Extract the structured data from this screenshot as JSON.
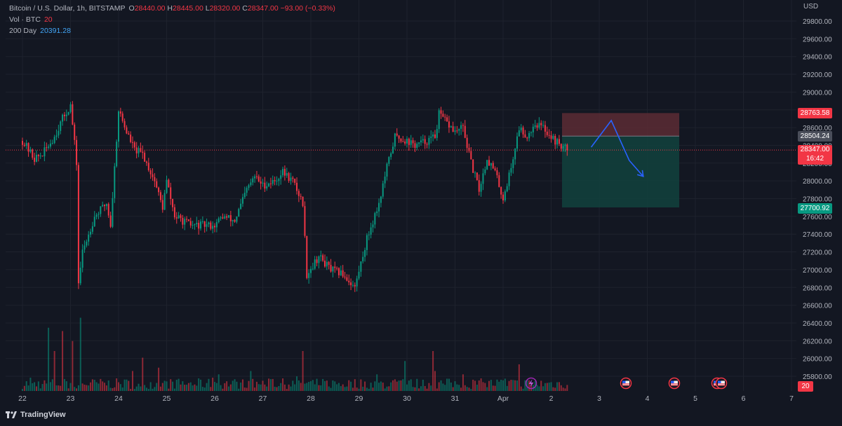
{
  "legend": {
    "symbol": "Bitcoin / U.S. Dollar, 1h, BITSTAMP",
    "o_label": "O",
    "o_value": "28440.00",
    "h_label": "H",
    "h_value": "28445.00",
    "l_label": "L",
    "l_value": "28320.00",
    "c_label": "C",
    "c_value": "28347.00",
    "change": "−93.00 (−0.33%)",
    "vol_label": "Vol · BTC",
    "vol_value": "20",
    "ma_label": "200 Day",
    "ma_value": "20391.28"
  },
  "price_axis": {
    "currency": "USD",
    "ticks": [
      "29800.00",
      "29600.00",
      "29400.00",
      "29200.00",
      "29000.00",
      "28800.00",
      "28600.00",
      "28400.00",
      "28200.00",
      "28000.00",
      "27800.00",
      "27600.00",
      "27400.00",
      "27200.00",
      "27000.00",
      "26800.00",
      "26600.00",
      "26400.00",
      "26200.00",
      "26000.00",
      "25800.00"
    ]
  },
  "tags": {
    "stop": "28763.58",
    "entry": "28504.24",
    "last_price": "28347.00",
    "countdown": "16:42",
    "target": "27700.92",
    "volume": "20"
  },
  "time_axis": {
    "ticks": [
      "22",
      "23",
      "24",
      "25",
      "26",
      "27",
      "28",
      "29",
      "30",
      "31",
      "Apr",
      "2",
      "3",
      "4",
      "5",
      "6",
      "7"
    ]
  },
  "branding": {
    "name": "TradingView"
  },
  "colors": {
    "up": "#089981",
    "down": "#f23645",
    "background": "#131722",
    "arrow": "#2962ff",
    "stop_zone": "#5c2b34",
    "target_zone": "#123f3c"
  },
  "chart_data": {
    "type": "candlestick",
    "interval": "1h",
    "symbol": "Bitcoin / U.S. Dollar",
    "exchange": "BITSTAMP",
    "ylim": [
      25700,
      29900
    ],
    "x_range": [
      "22",
      "7"
    ],
    "last_close": 28347,
    "anchors_price_by_hour": [
      [
        0,
        28450
      ],
      [
        6,
        28250
      ],
      [
        10,
        28300
      ],
      [
        16,
        28500
      ],
      [
        20,
        28700
      ],
      [
        24,
        28850
      ],
      [
        27,
        28200
      ],
      [
        28,
        26850
      ],
      [
        30,
        27200
      ],
      [
        36,
        27600
      ],
      [
        42,
        27750
      ],
      [
        44,
        27500
      ],
      [
        48,
        28800
      ],
      [
        52,
        28550
      ],
      [
        56,
        28350
      ],
      [
        60,
        28300
      ],
      [
        66,
        28000
      ],
      [
        70,
        27700
      ],
      [
        72,
        28000
      ],
      [
        76,
        27600
      ],
      [
        80,
        27550
      ],
      [
        84,
        27500
      ],
      [
        90,
        27500
      ],
      [
        96,
        27500
      ],
      [
        100,
        27600
      ],
      [
        106,
        27550
      ],
      [
        112,
        27900
      ],
      [
        116,
        28050
      ],
      [
        120,
        27950
      ],
      [
        126,
        28000
      ],
      [
        130,
        28100
      ],
      [
        135,
        28000
      ],
      [
        140,
        27750
      ],
      [
        142,
        26950
      ],
      [
        148,
        27150
      ],
      [
        154,
        27000
      ],
      [
        160,
        26950
      ],
      [
        166,
        26800
      ],
      [
        172,
        27350
      ],
      [
        178,
        27750
      ],
      [
        182,
        28150
      ],
      [
        186,
        28500
      ],
      [
        192,
        28450
      ],
      [
        196,
        28400
      ],
      [
        202,
        28450
      ],
      [
        206,
        28500
      ],
      [
        208,
        28750
      ],
      [
        212,
        28650
      ],
      [
        216,
        28550
      ],
      [
        220,
        28600
      ],
      [
        224,
        28200
      ],
      [
        228,
        27900
      ],
      [
        232,
        28250
      ],
      [
        236,
        28100
      ],
      [
        240,
        27800
      ],
      [
        244,
        28150
      ],
      [
        248,
        28600
      ],
      [
        252,
        28500
      ],
      [
        256,
        28650
      ],
      [
        260,
        28600
      ],
      [
        266,
        28450
      ],
      [
        270,
        28380
      ],
      [
        272,
        28347
      ]
    ],
    "volume_spike_hours": [
      [
        4,
        20
      ],
      [
        13,
        95
      ],
      [
        16,
        60
      ],
      [
        20,
        90
      ],
      [
        25,
        75
      ],
      [
        29,
        110
      ],
      [
        55,
        30
      ],
      [
        60,
        50
      ],
      [
        68,
        35
      ],
      [
        95,
        20
      ],
      [
        98,
        25
      ],
      [
        113,
        15
      ],
      [
        114,
        30
      ],
      [
        125,
        18
      ],
      [
        137,
        22
      ],
      [
        140,
        60
      ],
      [
        150,
        18
      ],
      [
        177,
        25
      ],
      [
        191,
        45
      ],
      [
        205,
        60
      ],
      [
        206,
        30
      ],
      [
        220,
        25
      ],
      [
        231,
        12
      ],
      [
        243,
        15
      ],
      [
        248,
        40
      ]
    ],
    "position": {
      "type": "short",
      "entry": 28504.24,
      "stop": 28763.58,
      "target": 27700.92
    },
    "projected_path": [
      [
        284,
        28380
      ],
      [
        294,
        28680
      ],
      [
        303,
        28230
      ],
      [
        310,
        28050
      ]
    ]
  }
}
